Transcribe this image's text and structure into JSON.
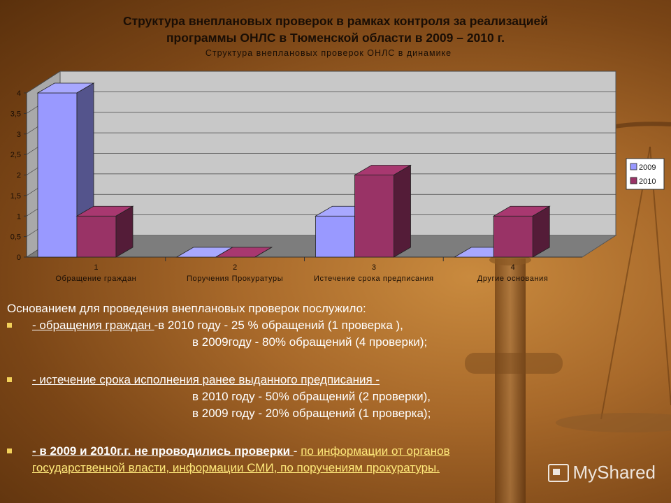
{
  "slide": {
    "title_line1": "Структура внеплановых проверок в рамках контроля за реализацией",
    "title_line2": "программы ОНЛС в Тюменской области в 2009 – 2010 г.",
    "body": {
      "heading": "Основанием для проведения внеплановых проверок послужило:",
      "b1_link": "- обращения граждан ",
      "b1_rest": "-в 2010 году  - 25 % обращений (1 проверка ),",
      "b1_line2": "в 2009году - 80% обращений (4 проверки);",
      "b2_link": "- истечение срока исполнения ранее выданного предписания -",
      "b2_line2": "в 2010 году  - 50% обращений (2 проверки),",
      "b2_line3": "в 2009 году - 20% обращений (1 проверка);",
      "b3_bold": "- в 2009 и 2010г.г. не проводились проверки ",
      "b3_dash": "- ",
      "b3_gold1": "по информации от органов",
      "b3_gold2": "государственной власти, информации СМИ, по поручениям прокуратуры."
    },
    "logo_text": "MyShared"
  },
  "chart_data": {
    "type": "bar",
    "title": "Структура внеплановых проверок ОНЛС в динамике",
    "categories": [
      "1",
      "2",
      "3",
      "4"
    ],
    "category_labels": [
      "Обращение граждан",
      "Поручения Прокуратуры",
      "Истечение срока предписания",
      "Другие основания"
    ],
    "series": [
      {
        "name": "2009",
        "values": [
          4,
          0,
          1,
          0
        ],
        "color": "#9999ff"
      },
      {
        "name": "2010",
        "values": [
          1,
          0,
          2,
          1
        ],
        "color": "#993366"
      }
    ],
    "ylim": [
      0,
      4
    ],
    "yticks": [
      "0",
      "0,5",
      "1",
      "1,5",
      "2",
      "2,5",
      "3",
      "3,5",
      "4"
    ],
    "legend": "right",
    "grid": true
  }
}
